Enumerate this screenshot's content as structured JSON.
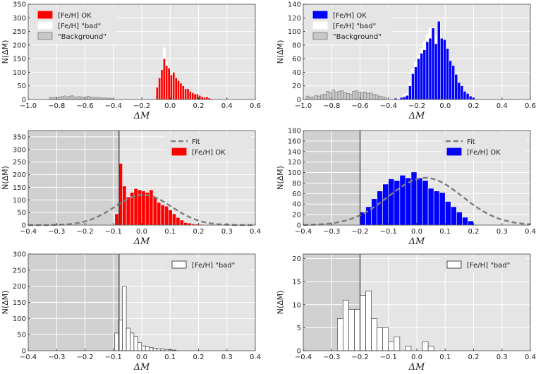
{
  "colors": {
    "panel_bg": "#e5e5e5",
    "shade": "#d0d0d0",
    "grid": "#ffffff",
    "ok_red": "#ff0000",
    "ok_blue": "#0000ff",
    "bad": "#ffffff",
    "background": "#c8c8c8",
    "fit": "#808080",
    "axis": "#444444"
  },
  "chart_data": [
    {
      "id": "tl",
      "type": "bar",
      "xlabel": "ΔM",
      "ylabel": "N(ΔM)",
      "xlim": [
        -1.0,
        0.6
      ],
      "ylim": [
        0,
        350
      ],
      "xticks": [
        "−1.0",
        "−0.8",
        "−0.6",
        "−0.4",
        "−0.2",
        "0.0",
        "0.2",
        "0.4",
        "0.6"
      ],
      "xtick_values": [
        -1.0,
        -0.8,
        -0.6,
        -0.4,
        -0.2,
        0.0,
        0.2,
        0.4,
        0.6
      ],
      "yticks": [
        "0",
        "50",
        "100",
        "150",
        "200",
        "250",
        "300",
        "350"
      ],
      "ytick_values": [
        0,
        50,
        100,
        150,
        200,
        250,
        300,
        350
      ],
      "legend": {
        "position": "top-left",
        "entries": [
          {
            "label": "[Fe/H] OK",
            "kind": "ok"
          },
          {
            "label": "[Fe/H] \"bad\"",
            "kind": "bad"
          },
          {
            "label": "\"Background\"",
            "kind": "background"
          }
        ]
      },
      "bin_width": 0.0167,
      "background_bins": {
        "start": -0.85,
        "counts": [
          8,
          6,
          9,
          7,
          10,
          11,
          13,
          9,
          12,
          14,
          10,
          8,
          11,
          9,
          7,
          10,
          12,
          8,
          9,
          6,
          8,
          7,
          5,
          6,
          4,
          5,
          3
        ]
      },
      "bad_bins": {
        "start": -0.1,
        "counts": [
          40,
          60,
          105,
          190,
          140,
          100,
          70,
          55,
          40,
          30,
          20,
          15,
          10,
          8,
          6,
          5,
          4,
          3,
          2,
          2,
          2,
          1,
          1,
          0
        ]
      },
      "ok_bins": {
        "start": -0.1,
        "counts": [
          45,
          80,
          110,
          150,
          125,
          115,
          90,
          100,
          80,
          70,
          60,
          50,
          40,
          40,
          30,
          25,
          20,
          20,
          15,
          10,
          8,
          10,
          6,
          3
        ]
      }
    },
    {
      "id": "tr",
      "type": "bar",
      "xlabel": "ΔM",
      "ylabel": "N(ΔM)",
      "xlim": [
        -1.0,
        0.6
      ],
      "ylim": [
        0,
        140
      ],
      "xticks": [
        "−1.0",
        "−0.8",
        "−0.6",
        "−0.4",
        "−0.2",
        "0.0",
        "0.2",
        "0.4",
        "0.6"
      ],
      "xtick_values": [
        -1.0,
        -0.8,
        -0.6,
        -0.4,
        -0.2,
        0.0,
        0.2,
        0.4,
        0.6
      ],
      "yticks": [
        "0",
        "20",
        "40",
        "60",
        "80",
        "100",
        "120",
        "140"
      ],
      "ytick_values": [
        0,
        20,
        40,
        60,
        80,
        100,
        120,
        140
      ],
      "legend": {
        "position": "top-left",
        "entries": [
          {
            "label": "[Fe/H] OK",
            "kind": "ok"
          },
          {
            "label": "[Fe/H] \"bad\"",
            "kind": "bad"
          },
          {
            "label": "\"Background\"",
            "kind": "background"
          }
        ]
      },
      "bin_width": 0.0203,
      "background_bins": {
        "start": -0.98,
        "counts": [
          5,
          3,
          4,
          6,
          5,
          7,
          8,
          12,
          10,
          14,
          11,
          12,
          13,
          10,
          9,
          8,
          12,
          13,
          11,
          10,
          11,
          9,
          10,
          8,
          7,
          5,
          4,
          3
        ]
      },
      "bad_bins": {
        "start": -0.4,
        "counts": [
          0,
          0,
          0,
          2,
          3,
          8,
          10,
          25,
          45,
          55,
          65,
          75,
          85,
          95,
          105,
          100,
          95,
          90,
          80,
          70,
          62,
          50,
          40,
          35,
          25,
          20,
          10,
          8,
          4,
          2
        ]
      },
      "ok_bins": {
        "start": -0.4,
        "counts": [
          0,
          0,
          2,
          1,
          3,
          4,
          6,
          20,
          38,
          48,
          60,
          68,
          73,
          85,
          90,
          105,
          82,
          115,
          90,
          88,
          75,
          57,
          50,
          37,
          25,
          20,
          12,
          9,
          5,
          3
        ]
      }
    },
    {
      "id": "ml",
      "type": "bar",
      "xlabel": "ΔM",
      "ylabel": "N(ΔM)",
      "xlim": [
        -0.4,
        0.4
      ],
      "ylim": [
        0,
        375
      ],
      "xticks": [
        "−0.4",
        "−0.3",
        "−0.2",
        "−0.1",
        "0.0",
        "0.1",
        "0.2",
        "0.3",
        "0.4"
      ],
      "xtick_values": [
        -0.4,
        -0.3,
        -0.2,
        -0.1,
        0.0,
        0.1,
        0.2,
        0.3,
        0.4
      ],
      "yticks": [
        "0",
        "50",
        "100",
        "150",
        "200",
        "250",
        "300",
        "350"
      ],
      "ytick_values": [
        0,
        50,
        100,
        150,
        200,
        250,
        300,
        350
      ],
      "legend": {
        "position": "top-right",
        "entries": [
          {
            "label": "Fit",
            "kind": "fit"
          },
          {
            "label": "[Fe/H] OK",
            "kind": "ok"
          }
        ]
      },
      "cut": -0.08,
      "bin_width": 0.0135,
      "ok_bins": {
        "start": -0.095,
        "counts": [
          45,
          245,
          155,
          112,
          130,
          145,
          140,
          135,
          130,
          140,
          110,
          90,
          80,
          75,
          60,
          45,
          30,
          20,
          10,
          8,
          5,
          4,
          3,
          2
        ]
      },
      "fit": {
        "mean": 0.005,
        "sigma": 0.1,
        "amplitude": 120
      }
    },
    {
      "id": "mr",
      "type": "bar",
      "xlabel": "ΔM",
      "ylabel": "N(ΔM)",
      "xlim": [
        -0.4,
        0.4
      ],
      "ylim": [
        0,
        180
      ],
      "xticks": [
        "−0.4",
        "−0.3",
        "−0.2",
        "−0.1",
        "0.0",
        "0.1",
        "0.2",
        "0.3",
        "0.4"
      ],
      "xtick_values": [
        -0.4,
        -0.3,
        -0.2,
        -0.1,
        0.0,
        0.1,
        0.2,
        0.3,
        0.4
      ],
      "yticks": [
        "0",
        "20",
        "40",
        "60",
        "80",
        "100",
        "120",
        "140",
        "160",
        "180"
      ],
      "ytick_values": [
        0,
        20,
        40,
        60,
        80,
        100,
        120,
        140,
        160,
        180
      ],
      "legend": {
        "position": "top-right",
        "entries": [
          {
            "label": "Fit",
            "kind": "fit"
          },
          {
            "label": "[Fe/H] OK",
            "kind": "ok"
          }
        ]
      },
      "cut": -0.2,
      "bin_width": 0.02,
      "ok_bins": {
        "start": -0.2,
        "counts": [
          25,
          35,
          50,
          65,
          78,
          88,
          85,
          95,
          90,
          101,
          90,
          85,
          70,
          65,
          62,
          45,
          35,
          25,
          15,
          8
        ]
      },
      "fit": {
        "mean": 0.03,
        "sigma": 0.13,
        "amplitude": 90
      }
    },
    {
      "id": "bl",
      "type": "bar",
      "xlabel": "ΔM",
      "ylabel": "N(ΔM)",
      "xlim": [
        -0.4,
        0.4
      ],
      "ylim": [
        0,
        300
      ],
      "xticks": [
        "−0.4",
        "−0.3",
        "−0.2",
        "−0.1",
        "0.0",
        "0.1",
        "0.2",
        "0.3",
        "0.4"
      ],
      "xtick_values": [
        -0.4,
        -0.3,
        -0.2,
        -0.1,
        0.0,
        0.1,
        0.2,
        0.3,
        0.4
      ],
      "yticks": [
        "0",
        "50",
        "100",
        "150",
        "200",
        "250",
        "300"
      ],
      "ytick_values": [
        0,
        50,
        100,
        150,
        200,
        250,
        300
      ],
      "legend": {
        "position": "top-right",
        "entries": [
          {
            "label": "[Fe/H] \"bad\"",
            "kind": "bad"
          }
        ]
      },
      "cut": -0.08,
      "bin_width": 0.0135,
      "bad_bins": {
        "start": -0.095,
        "counts": [
          55,
          95,
          200,
          70,
          55,
          45,
          25,
          15,
          12,
          10,
          8,
          6,
          5,
          4,
          3,
          2
        ]
      }
    },
    {
      "id": "br",
      "type": "bar",
      "xlabel": "ΔM",
      "ylabel": "N(ΔM)",
      "xlim": [
        -0.4,
        0.4
      ],
      "ylim": [
        0,
        21
      ],
      "xticks": [
        "−0.4",
        "−0.3",
        "−0.2",
        "−0.1",
        "0.0",
        "0.1",
        "0.2",
        "0.3",
        "0.4"
      ],
      "xtick_values": [
        -0.4,
        -0.3,
        -0.2,
        -0.1,
        0.0,
        0.1,
        0.2,
        0.3,
        0.4
      ],
      "yticks": [
        "0",
        "5",
        "10",
        "15",
        "20"
      ],
      "ytick_values": [
        0,
        5,
        10,
        15,
        20
      ],
      "legend": {
        "position": "top-right",
        "entries": [
          {
            "label": "[Fe/H] \"bad\"",
            "kind": "bad"
          }
        ]
      },
      "cut": -0.2,
      "bin_width": 0.02,
      "bad_bins": {
        "start": -0.28,
        "counts": [
          7,
          11,
          9,
          9,
          12,
          13,
          7,
          5,
          5,
          2,
          3,
          0,
          1,
          0,
          0,
          2,
          1
        ]
      }
    }
  ]
}
